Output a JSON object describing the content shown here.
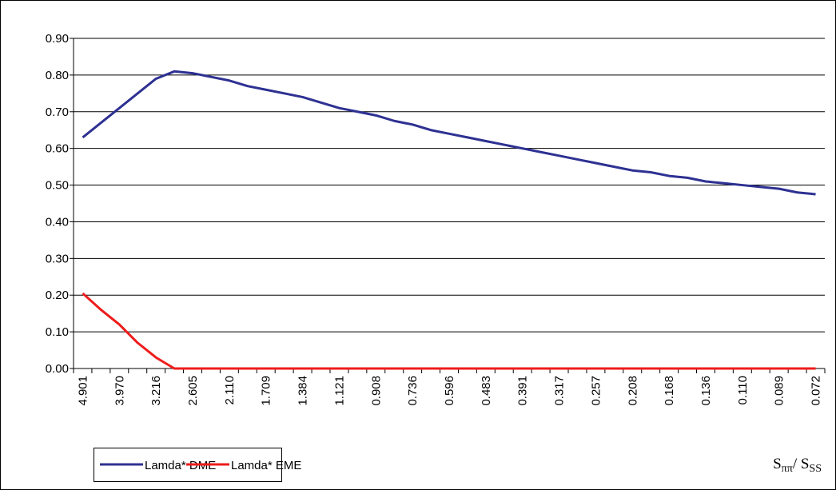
{
  "chart_data": {
    "type": "line",
    "categories": [
      "4.901",
      null,
      "3.970",
      null,
      "3.216",
      null,
      "2.605",
      null,
      "2.110",
      null,
      "1.709",
      null,
      "1.384",
      null,
      "1.121",
      null,
      "0.908",
      null,
      "0.736",
      null,
      "0.596",
      null,
      "0.483",
      null,
      "0.391",
      null,
      "0.317",
      null,
      "0.257",
      null,
      "0.208",
      null,
      "0.168",
      null,
      "0.136",
      null,
      "0.110",
      null,
      "0.089",
      null,
      "0.072"
    ],
    "series": [
      {
        "name": "Lamda* DME",
        "color": "#2e3192",
        "values": [
          0.63,
          0.67,
          0.71,
          0.75,
          0.79,
          0.81,
          0.805,
          0.795,
          0.785,
          0.77,
          0.76,
          0.75,
          0.74,
          0.725,
          0.71,
          0.7,
          0.69,
          0.675,
          0.665,
          0.65,
          0.64,
          0.63,
          0.62,
          0.61,
          0.6,
          0.59,
          0.58,
          0.57,
          0.56,
          0.55,
          0.54,
          0.535,
          0.525,
          0.52,
          0.51,
          0.505,
          0.5,
          0.495,
          0.49,
          0.48,
          0.475
        ]
      },
      {
        "name": "Lamda* EME",
        "color": "#ee1c1c",
        "values": [
          0.205,
          0.16,
          0.12,
          0.07,
          0.03,
          0,
          0,
          0,
          0,
          0,
          0,
          0,
          0,
          0,
          0,
          0,
          0,
          0,
          0,
          0,
          0,
          0,
          0,
          0,
          0,
          0,
          0,
          0,
          0,
          0,
          0,
          0,
          0,
          0,
          0,
          0,
          0,
          0,
          0,
          0,
          0
        ]
      }
    ],
    "ylim": [
      0,
      0.9
    ],
    "yticks": [
      {
        "value": 0,
        "label": "0.00"
      },
      {
        "value": 0.1,
        "label": "0.10"
      },
      {
        "value": 0.2,
        "label": "0.20"
      },
      {
        "value": 0.3,
        "label": "0.30"
      },
      {
        "value": 0.4,
        "label": "0.40"
      },
      {
        "value": 0.5,
        "label": "0.50"
      },
      {
        "value": 0.6,
        "label": "0.60"
      },
      {
        "value": 0.7,
        "label": "0.70"
      },
      {
        "value": 0.8,
        "label": "0.80"
      },
      {
        "value": 0.9,
        "label": "0.90"
      }
    ],
    "grid": true,
    "x_label": [
      "S",
      "ππ",
      "/ S",
      "SS"
    ]
  }
}
